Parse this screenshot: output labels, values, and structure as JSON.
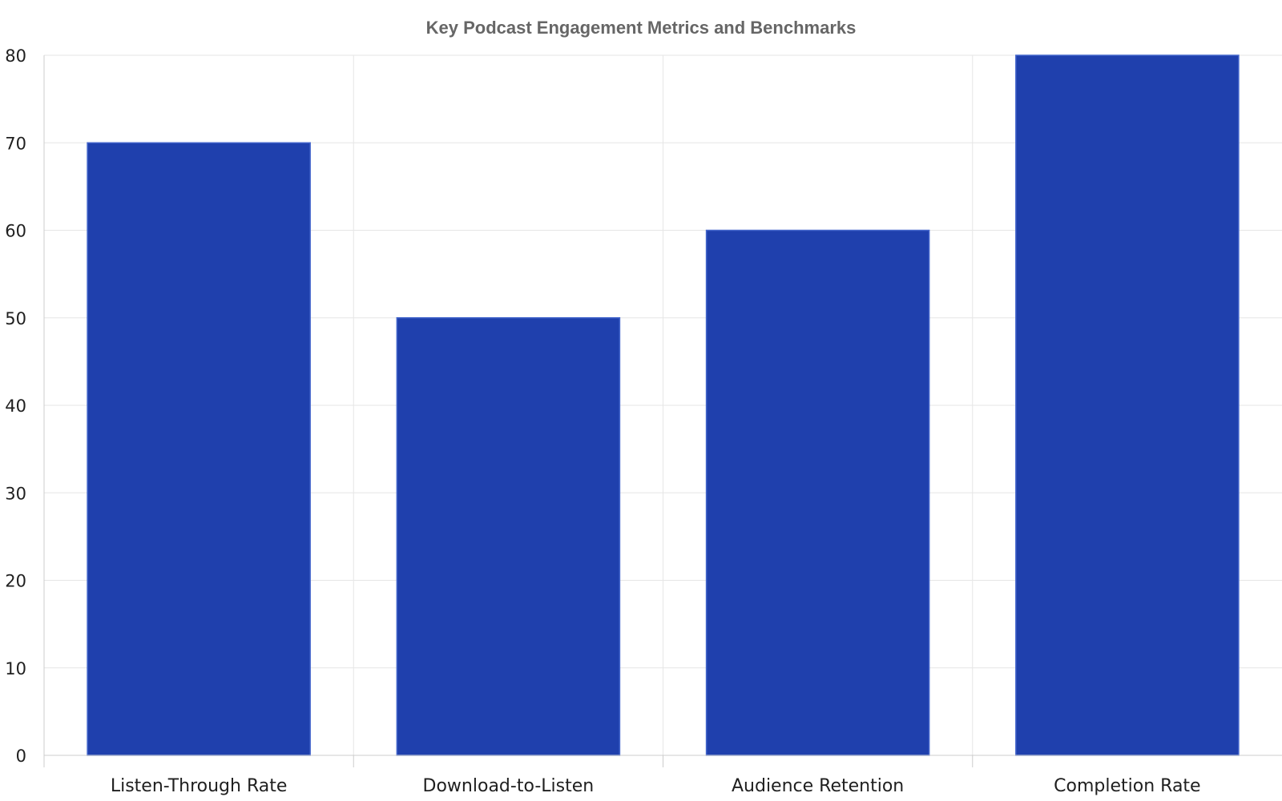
{
  "chart_data": {
    "type": "bar",
    "title": "Key Podcast Engagement Metrics and Benchmarks",
    "categories": [
      "Listen-Through Rate",
      "Download-to-Listen",
      "Audience Retention",
      "Completion Rate"
    ],
    "values": [
      70,
      50,
      60,
      80
    ],
    "ylim": [
      0,
      80
    ],
    "yticks": [
      0,
      10,
      20,
      30,
      40,
      50,
      60,
      70,
      80
    ],
    "grid": true,
    "bar_color": "#1f40ad",
    "bar_border_color": "#4466cc"
  }
}
